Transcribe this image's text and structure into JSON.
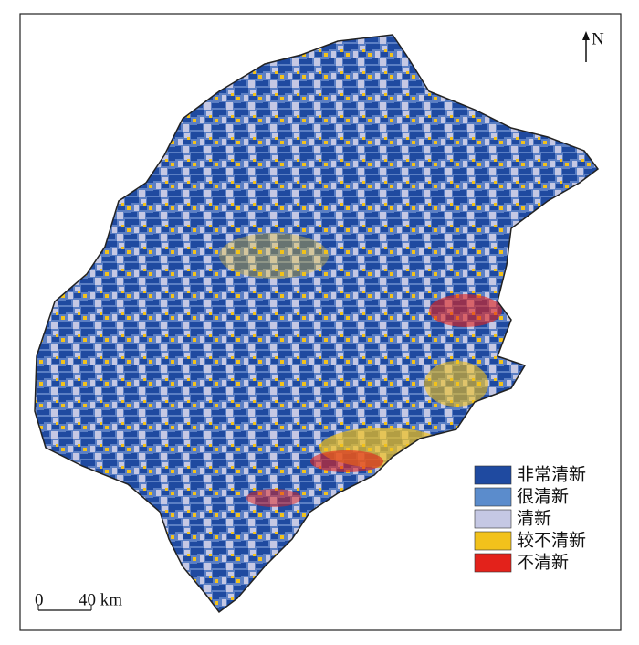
{
  "north_arrow": "N",
  "legend": [
    {
      "name": "非常清新",
      "color": "#1f4aa0"
    },
    {
      "name": "很清新",
      "color": "#5b8ccc"
    },
    {
      "name": "清新",
      "color": "#c5c8e4"
    },
    {
      "name": "较不清新",
      "color": "#f2c21b"
    },
    {
      "name": "不清新",
      "color": "#e3221b"
    }
  ],
  "scale_bar": {
    "start": "0",
    "end": "40 km"
  }
}
